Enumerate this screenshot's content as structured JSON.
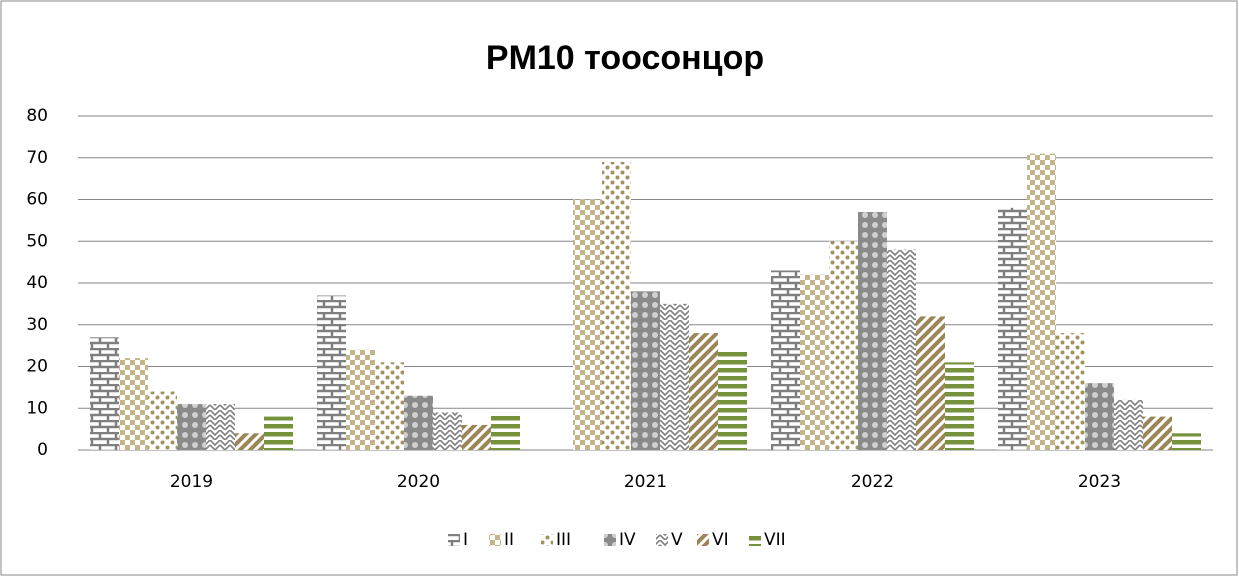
{
  "chart_data": {
    "type": "bar",
    "title": "PM10 тоосонцор",
    "categories": [
      "2019",
      "2020",
      "2021",
      "2022",
      "2023"
    ],
    "series": [
      {
        "name": "I",
        "color": "#7f7f7f",
        "values": [
          27,
          37,
          0,
          43,
          58
        ]
      },
      {
        "name": "II",
        "color": "#c4b48a",
        "values": [
          22,
          24,
          60,
          42,
          71
        ]
      },
      {
        "name": "III",
        "color": "#a2925f",
        "values": [
          14,
          21,
          69,
          50,
          28
        ]
      },
      {
        "name": "IV",
        "color": "#8a8a8a",
        "values": [
          11,
          13,
          38,
          57,
          16
        ]
      },
      {
        "name": "V",
        "color": "#808080",
        "values": [
          11,
          9,
          35,
          48,
          12
        ]
      },
      {
        "name": "VI",
        "color": "#9a8656",
        "values": [
          4,
          6,
          28,
          32,
          8
        ]
      },
      {
        "name": "VII",
        "color": "#76923c",
        "values": [
          8,
          9,
          24,
          21,
          4
        ]
      }
    ],
    "ylim": [
      0,
      80
    ],
    "yticks": [
      0,
      10,
      20,
      30,
      40,
      50,
      60,
      70,
      80
    ],
    "grid": true,
    "legend": "bottom"
  }
}
